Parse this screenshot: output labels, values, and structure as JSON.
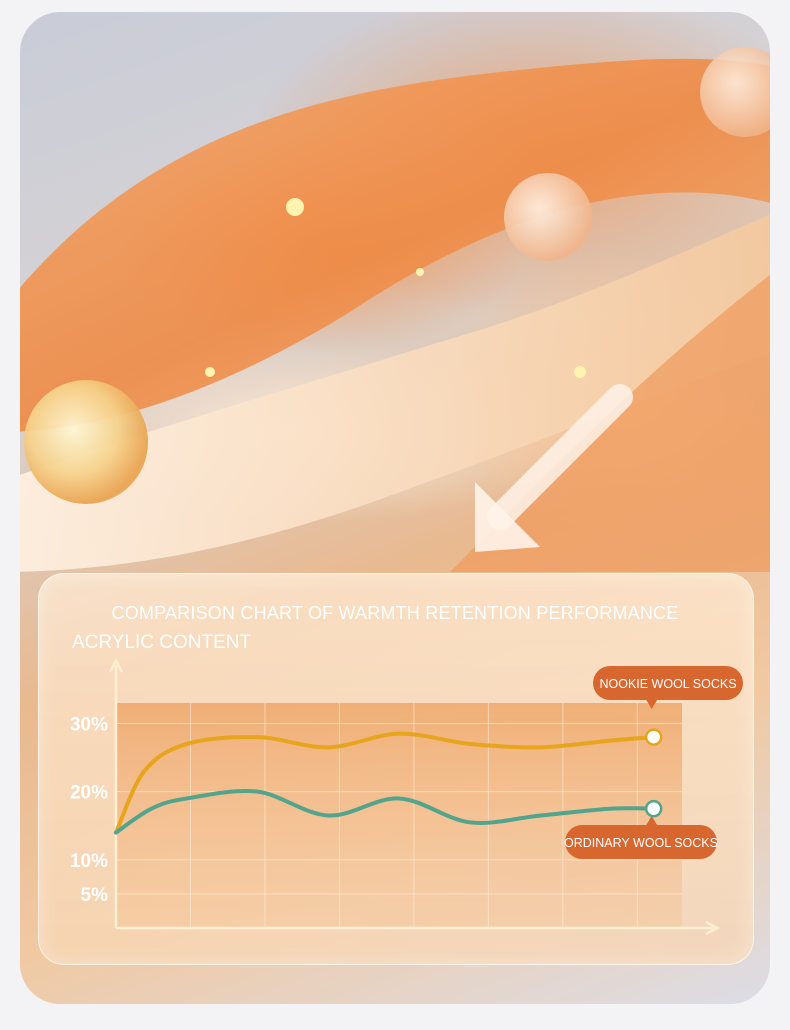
{
  "chart_data": {
    "type": "line",
    "title": "COMPARISON CHART OF WARMTH RETENTION PERFORMANCE",
    "ylabel": "ACRYLIC CONTENT",
    "xlabel": "",
    "yticks": [
      {
        "value": 5,
        "label": "5%"
      },
      {
        "value": 10,
        "label": "10%"
      },
      {
        "value": 20,
        "label": "20%"
      },
      {
        "value": 30,
        "label": "30%"
      }
    ],
    "ylim": [
      0,
      33
    ],
    "xlim": [
      0,
      8
    ],
    "grid": true,
    "series": [
      {
        "name": "NOOKIE WOOL SOCKS",
        "color": "#e6a51d",
        "label_color": "#d8662f",
        "x": [
          0,
          0.4,
          1,
          2,
          3,
          4,
          5,
          6,
          7,
          7.6
        ],
        "y": [
          14,
          23,
          27,
          28,
          26.5,
          28.5,
          27,
          26.5,
          27.5,
          28
        ]
      },
      {
        "name": "ORDINARY WOOL SOCKS",
        "color": "#52a58c",
        "label_color": "#d8662f",
        "x": [
          0,
          0.5,
          1,
          2,
          3,
          4,
          5,
          6,
          7,
          7.6
        ],
        "y": [
          14,
          17.5,
          19,
          20,
          16.5,
          19,
          15.5,
          16.5,
          17.5,
          17.5
        ]
      }
    ]
  }
}
